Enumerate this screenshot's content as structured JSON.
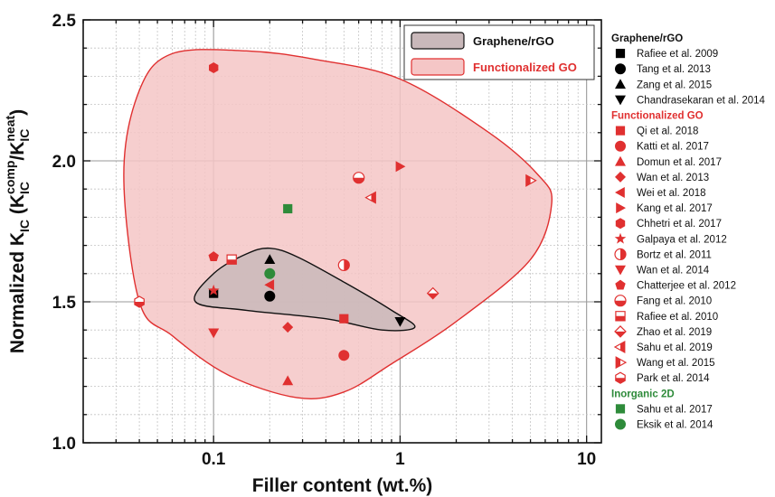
{
  "chart_data": {
    "type": "scatter",
    "xscale": "log",
    "xlim": [
      0.02,
      12
    ],
    "ylim": [
      1.0,
      2.5
    ],
    "grid": true,
    "xlabel": "Filler content (wt.%)",
    "ylabel": {
      "main": "Normalized K",
      "sub1": "IC",
      "open": " (K",
      "sub2": "IC",
      "sup2": "comp",
      "slash": "/K",
      "sub3": "IC",
      "sup3": "neat",
      "close": ")"
    },
    "xticks": [
      {
        "value": 0.1,
        "label": "0.1"
      },
      {
        "value": 1,
        "label": "1"
      },
      {
        "value": 10,
        "label": "10"
      }
    ],
    "yticks": [
      {
        "value": 1.0,
        "label": "1.0"
      },
      {
        "value": 1.5,
        "label": "1.5"
      },
      {
        "value": 2.0,
        "label": "2.0"
      },
      {
        "value": 2.5,
        "label": "2.5"
      }
    ],
    "regions": [
      {
        "name": "Functionalized GO",
        "color": "#e03030",
        "fill": "#f5c6c6",
        "polygon": [
          [
            0.04,
            1.5
          ],
          [
            0.033,
            1.95
          ],
          [
            0.04,
            2.25
          ],
          [
            0.06,
            2.38
          ],
          [
            0.15,
            2.39
          ],
          [
            0.35,
            2.36
          ],
          [
            1.0,
            2.29
          ],
          [
            3.0,
            2.1
          ],
          [
            5.5,
            1.95
          ],
          [
            6.5,
            1.85
          ],
          [
            5.0,
            1.65
          ],
          [
            2.0,
            1.43
          ],
          [
            0.9,
            1.28
          ],
          [
            0.5,
            1.18
          ],
          [
            0.28,
            1.16
          ],
          [
            0.12,
            1.24
          ],
          [
            0.06,
            1.38
          ]
        ]
      },
      {
        "name": "Graphene/rGO",
        "color": "#111111",
        "fill": "#c9b8ba",
        "polygon": [
          [
            0.08,
            1.5
          ],
          [
            0.1,
            1.6
          ],
          [
            0.15,
            1.67
          ],
          [
            0.2,
            1.69
          ],
          [
            0.28,
            1.66
          ],
          [
            0.5,
            1.57
          ],
          [
            0.9,
            1.47
          ],
          [
            1.2,
            1.41
          ],
          [
            0.8,
            1.4
          ],
          [
            0.4,
            1.44
          ],
          [
            0.15,
            1.47
          ]
        ]
      }
    ],
    "series": [
      {
        "name": "Rafiee et al. 2009",
        "group": "Graphene/rGO",
        "marker": "square",
        "color": "#000000",
        "points": [
          [
            0.1,
            1.53
          ]
        ]
      },
      {
        "name": "Tang et al. 2013",
        "group": "Graphene/rGO",
        "marker": "circle",
        "color": "#000000",
        "points": [
          [
            0.2,
            1.52
          ]
        ]
      },
      {
        "name": "Zang et al. 2015",
        "group": "Graphene/rGO",
        "marker": "triangle-up",
        "color": "#000000",
        "points": [
          [
            0.2,
            1.65
          ]
        ]
      },
      {
        "name": "Chandrasekaran et al. 2014",
        "group": "Graphene/rGO",
        "marker": "triangle-down",
        "color": "#000000",
        "points": [
          [
            1.0,
            1.43
          ]
        ]
      },
      {
        "name": "Qi et al. 2018",
        "group": "Functionalized GO",
        "marker": "square",
        "color": "#e03030",
        "points": [
          [
            0.5,
            1.44
          ]
        ]
      },
      {
        "name": "Katti et al. 2017",
        "group": "Functionalized GO",
        "marker": "circle",
        "color": "#e03030",
        "points": [
          [
            0.5,
            1.31
          ]
        ]
      },
      {
        "name": "Domun et al. 2017",
        "group": "Functionalized GO",
        "marker": "triangle-up",
        "color": "#e03030",
        "points": [
          [
            0.25,
            1.22
          ]
        ]
      },
      {
        "name": "Wan et al. 2013",
        "group": "Functionalized GO",
        "marker": "diamond",
        "color": "#e03030",
        "points": [
          [
            0.25,
            1.41
          ]
        ]
      },
      {
        "name": "Wei et al. 2018",
        "group": "Functionalized GO",
        "marker": "triangle-left",
        "color": "#e03030",
        "points": [
          [
            0.2,
            1.56
          ]
        ]
      },
      {
        "name": "Kang et al. 2017",
        "group": "Functionalized GO",
        "marker": "triangle-right",
        "color": "#e03030",
        "points": [
          [
            1.0,
            1.98
          ]
        ]
      },
      {
        "name": "Chhetri et al. 2017",
        "group": "Functionalized GO",
        "marker": "hexagon",
        "color": "#e03030",
        "points": [
          [
            0.1,
            2.33
          ]
        ]
      },
      {
        "name": "Galpaya et al. 2012",
        "group": "Functionalized GO",
        "marker": "star",
        "color": "#e03030",
        "points": [
          [
            0.1,
            1.54
          ]
        ]
      },
      {
        "name": "Bortz et al. 2011",
        "group": "Functionalized GO",
        "marker": "circle-half-right",
        "color": "#e03030",
        "points": [
          [
            0.5,
            1.63
          ]
        ]
      },
      {
        "name": "Wan et al. 2014",
        "group": "Functionalized GO",
        "marker": "triangle-down",
        "color": "#e03030",
        "points": [
          [
            0.1,
            1.39
          ]
        ]
      },
      {
        "name": "Chatterjee et al. 2012",
        "group": "Functionalized GO",
        "marker": "pentagon",
        "color": "#e03030",
        "points": [
          [
            0.1,
            1.66
          ]
        ]
      },
      {
        "name": "Fang et al. 2010",
        "group": "Functionalized GO",
        "marker": "circle-half-bottom",
        "color": "#e03030",
        "points": [
          [
            0.6,
            1.94
          ]
        ]
      },
      {
        "name": "Rafiee et al. 2010",
        "group": "Functionalized GO",
        "marker": "square-half-bottom",
        "color": "#e03030",
        "points": [
          [
            0.125,
            1.65
          ]
        ]
      },
      {
        "name": "Zhao et al. 2019",
        "group": "Functionalized GO",
        "marker": "diamond-half-bottom",
        "color": "#e03030",
        "points": [
          [
            1.5,
            1.53
          ]
        ]
      },
      {
        "name": "Sahu et al. 2019",
        "group": "Functionalized GO",
        "marker": "triangle-left-half",
        "color": "#e03030",
        "points": [
          [
            0.7,
            1.87
          ]
        ]
      },
      {
        "name": "Wang et al. 2015",
        "group": "Functionalized GO",
        "marker": "triangle-right-half",
        "color": "#e03030",
        "points": [
          [
            5.0,
            1.93
          ]
        ]
      },
      {
        "name": "Park et al. 2014",
        "group": "Functionalized GO",
        "marker": "hexagon-half-bottom",
        "color": "#e03030",
        "points": [
          [
            0.04,
            1.5
          ]
        ]
      },
      {
        "name": "Sahu et al. 2017",
        "group": "Inorganic 2D",
        "marker": "square",
        "color": "#2e8b3a",
        "points": [
          [
            0.25,
            1.83
          ]
        ]
      },
      {
        "name": "Eksik et al. 2014",
        "group": "Inorganic 2D",
        "marker": "circle",
        "color": "#2e8b3a",
        "points": [
          [
            0.2,
            1.6
          ]
        ]
      }
    ],
    "legend": {
      "position": "right",
      "groups": [
        {
          "title": "Graphene/rGO",
          "color": "#111111"
        },
        {
          "title": "Functionalized GO",
          "color": "#e03030"
        },
        {
          "title": "Inorganic 2D",
          "color": "#2e8b3a"
        }
      ]
    },
    "inset_legend": {
      "position": "top-right-inside",
      "items": [
        {
          "label": "Graphene/rGO",
          "color": "#111111",
          "fill": "#c9b8ba"
        },
        {
          "label": "Functionalized GO",
          "color": "#e03030",
          "fill": "#f5c6c6"
        }
      ]
    }
  }
}
